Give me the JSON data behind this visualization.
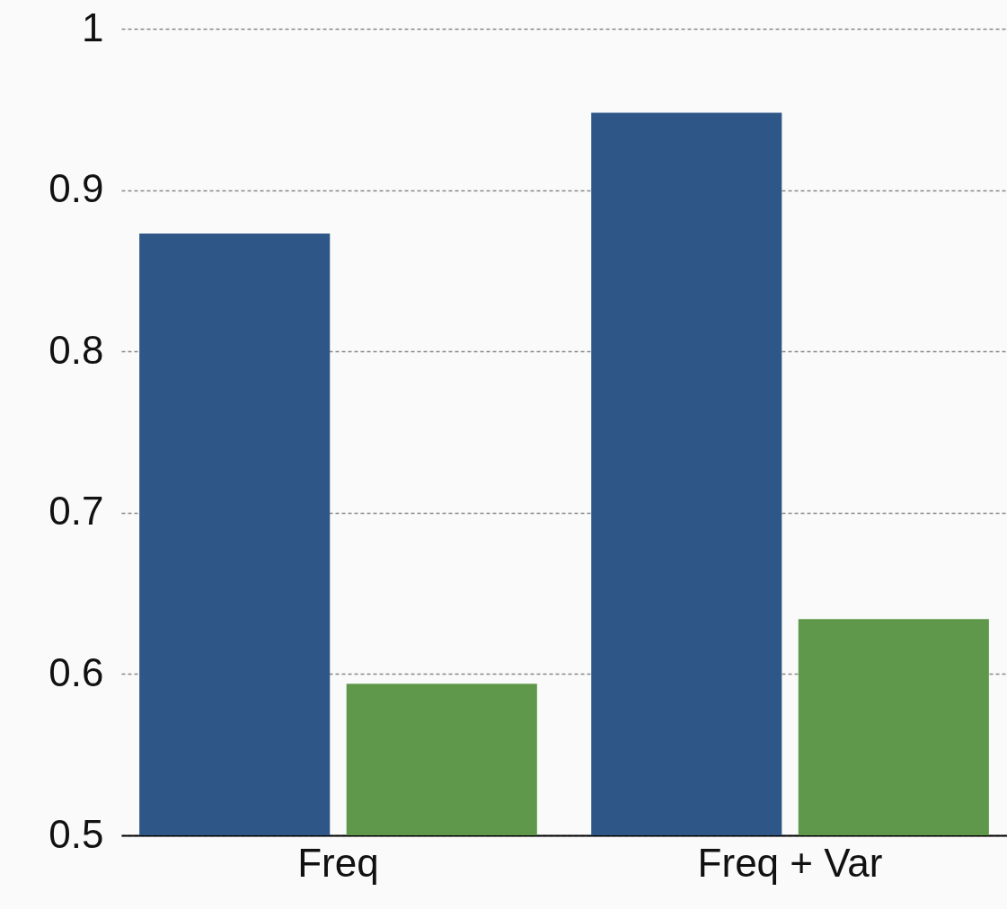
{
  "chart_data": {
    "type": "bar",
    "categories": [
      "Freq",
      "Freq + Var"
    ],
    "series": [
      {
        "color": "#2e5788",
        "values": [
          0.873,
          0.948
        ]
      },
      {
        "color": "#5f984a",
        "values": [
          0.594,
          0.634
        ]
      }
    ],
    "ylim": [
      0.5,
      1
    ],
    "yticks": [
      0.5,
      0.6,
      0.7,
      0.8,
      0.9,
      {
        "value": 1,
        "label": "1"
      }
    ],
    "grid": "y",
    "legend": false
  }
}
